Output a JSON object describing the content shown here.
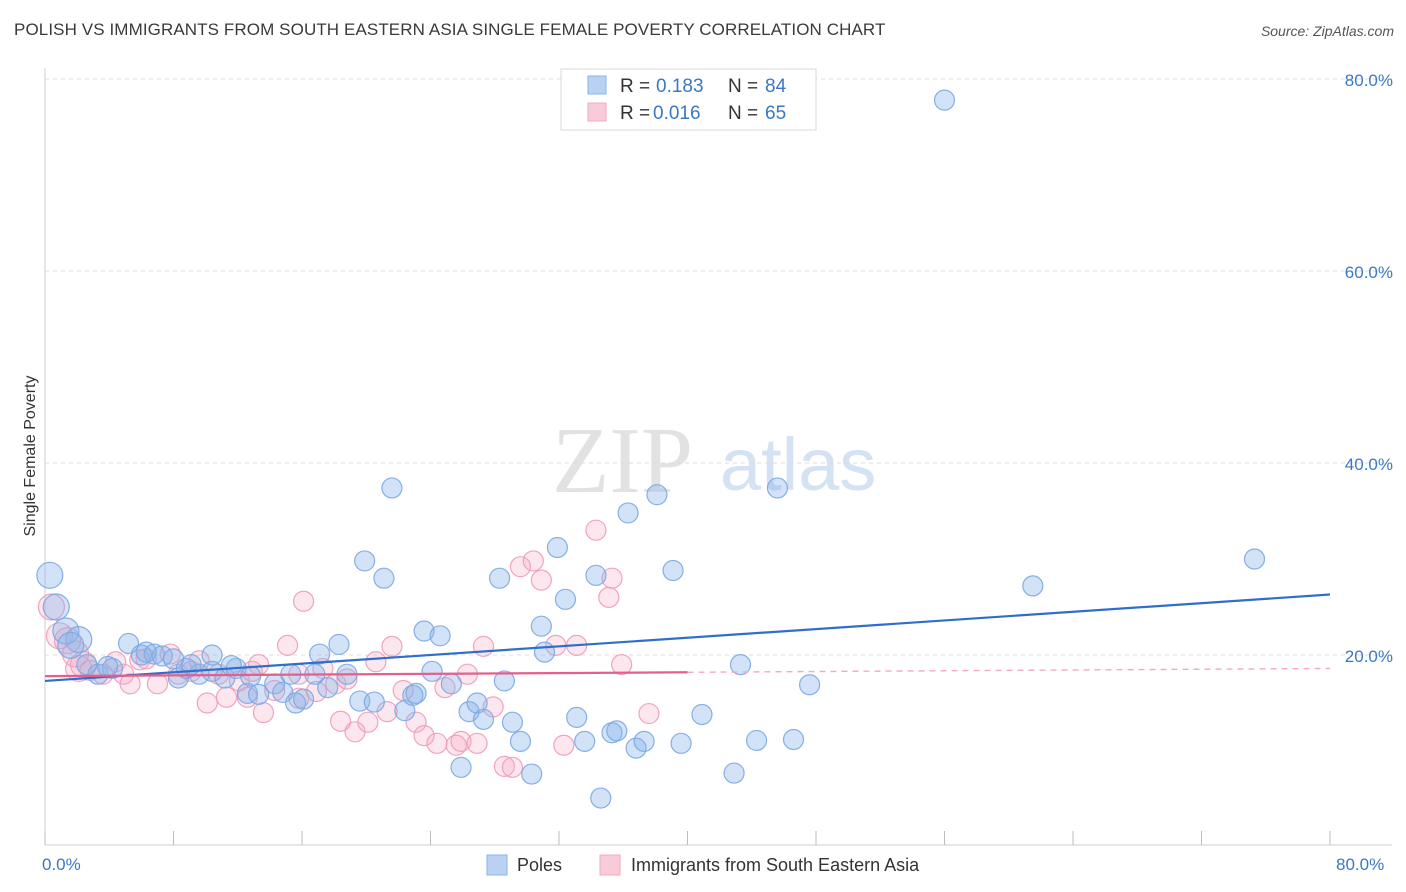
{
  "header": {
    "title": "POLISH VS IMMIGRANTS FROM SOUTH EASTERN ASIA SINGLE FEMALE POVERTY CORRELATION CHART",
    "source": "Source: ZipAtlas.com"
  },
  "watermark": {
    "zip": "ZIP",
    "atlas": "atlas"
  },
  "legend_box": [
    {
      "r_label": "R =",
      "r_value": "0.183",
      "n_label": "N =",
      "n_value": "84"
    },
    {
      "r_label": "R =",
      "r_value": "0.016",
      "n_label": "N =",
      "n_value": "65"
    }
  ],
  "chart_data": {
    "type": "scatter",
    "title": "POLISH VS IMMIGRANTS FROM SOUTH EASTERN ASIA SINGLE FEMALE POVERTY CORRELATION CHART",
    "xlabel": "",
    "ylabel": "Single Female Poverty",
    "xlim": [
      0,
      80
    ],
    "ylim": [
      0,
      82
    ],
    "x_tick_labels": [
      "0.0%",
      "80.0%"
    ],
    "y_ticks": [
      20,
      40,
      60,
      80
    ],
    "y_tick_labels": [
      "20.0%",
      "40.0%",
      "60.0%",
      "80.0%"
    ],
    "grid": true,
    "legend_position": "top-center",
    "series": [
      {
        "name": "Poles",
        "color": "#8ab4ea",
        "line_color": "#2f6fca",
        "r": 0.183,
        "n": 84,
        "trend": [
          [
            0,
            17.3
          ],
          [
            80,
            26.3
          ]
        ],
        "points": [
          [
            0.3,
            28.3
          ],
          [
            0.7,
            25.0
          ],
          [
            1.3,
            22.5
          ],
          [
            2.1,
            21.6
          ],
          [
            1.6,
            21.0
          ],
          [
            2.6,
            19.0
          ],
          [
            3.3,
            18.0
          ],
          [
            4.2,
            18.6
          ],
          [
            5.2,
            21.2
          ],
          [
            6.0,
            20.0
          ],
          [
            6.8,
            20.1
          ],
          [
            7.3,
            19.9
          ],
          [
            8.0,
            19.6
          ],
          [
            8.3,
            17.6
          ],
          [
            8.8,
            18.6
          ],
          [
            9.6,
            18.0
          ],
          [
            10.4,
            20.0
          ],
          [
            10.4,
            18.3
          ],
          [
            11.2,
            17.6
          ],
          [
            11.9,
            18.6
          ],
          [
            12.6,
            16.0
          ],
          [
            12.8,
            17.8
          ],
          [
            13.3,
            15.9
          ],
          [
            14.3,
            17.0
          ],
          [
            14.8,
            16.1
          ],
          [
            15.3,
            18.0
          ],
          [
            15.6,
            15.0
          ],
          [
            16.8,
            18.0
          ],
          [
            17.1,
            20.1
          ],
          [
            17.6,
            16.6
          ],
          [
            18.3,
            21.1
          ],
          [
            18.8,
            18.0
          ],
          [
            19.6,
            15.2
          ],
          [
            19.9,
            29.8
          ],
          [
            20.5,
            15.1
          ],
          [
            21.1,
            28.0
          ],
          [
            21.6,
            37.4
          ],
          [
            22.4,
            14.2
          ],
          [
            23.1,
            16.0
          ],
          [
            23.6,
            22.5
          ],
          [
            24.1,
            18.3
          ],
          [
            24.6,
            22.0
          ],
          [
            25.3,
            17.0
          ],
          [
            25.9,
            8.3
          ],
          [
            26.4,
            14.1
          ],
          [
            26.9,
            15.0
          ],
          [
            27.3,
            13.3
          ],
          [
            28.3,
            28.0
          ],
          [
            28.6,
            17.3
          ],
          [
            29.1,
            13.0
          ],
          [
            29.6,
            11.0
          ],
          [
            30.3,
            7.6
          ],
          [
            30.9,
            23.0
          ],
          [
            31.1,
            20.3
          ],
          [
            31.9,
            31.2
          ],
          [
            32.4,
            25.8
          ],
          [
            33.1,
            13.5
          ],
          [
            33.6,
            11.0
          ],
          [
            34.3,
            28.3
          ],
          [
            34.6,
            5.1
          ],
          [
            35.3,
            11.9
          ],
          [
            35.6,
            12.1
          ],
          [
            36.3,
            34.8
          ],
          [
            36.8,
            10.3
          ],
          [
            37.3,
            11.0
          ],
          [
            38.1,
            36.7
          ],
          [
            39.1,
            28.8
          ],
          [
            39.6,
            10.8
          ],
          [
            40.9,
            13.8
          ],
          [
            42.9,
            7.7
          ],
          [
            43.3,
            19.0
          ],
          [
            44.3,
            11.1
          ],
          [
            45.6,
            37.4
          ],
          [
            46.6,
            11.2
          ],
          [
            47.6,
            16.9
          ],
          [
            56.0,
            77.8
          ],
          [
            61.5,
            27.2
          ],
          [
            75.3,
            30.0
          ],
          [
            3.9,
            18.8
          ],
          [
            6.3,
            20.3
          ],
          [
            9.1,
            19.0
          ],
          [
            11.6,
            18.9
          ],
          [
            16.1,
            15.4
          ],
          [
            22.9,
            15.8
          ]
        ]
      },
      {
        "name": "Immigrants from South Eastern Asia",
        "color": "#f4a9c2",
        "line_color": "#e35f8c",
        "r": 0.016,
        "n": 65,
        "trend": [
          [
            0,
            17.8
          ],
          [
            40,
            18.2
          ]
        ],
        "trend_dashed": [
          [
            40,
            18.2
          ],
          [
            80,
            18.6
          ]
        ],
        "points": [
          [
            0.4,
            25.0
          ],
          [
            0.9,
            22.0
          ],
          [
            1.4,
            21.5
          ],
          [
            1.9,
            20.1
          ],
          [
            2.4,
            19.0
          ],
          [
            2.8,
            18.4
          ],
          [
            3.6,
            18.0
          ],
          [
            4.4,
            19.3
          ],
          [
            4.9,
            18.0
          ],
          [
            5.3,
            17.0
          ],
          [
            6.3,
            19.6
          ],
          [
            7.0,
            17.0
          ],
          [
            7.8,
            20.1
          ],
          [
            8.3,
            18.0
          ],
          [
            9.1,
            18.3
          ],
          [
            9.6,
            19.4
          ],
          [
            10.1,
            15.0
          ],
          [
            10.8,
            18.0
          ],
          [
            11.3,
            15.6
          ],
          [
            12.1,
            17.3
          ],
          [
            12.6,
            15.6
          ],
          [
            13.3,
            19.0
          ],
          [
            13.6,
            14.0
          ],
          [
            14.3,
            16.3
          ],
          [
            15.1,
            21.0
          ],
          [
            15.8,
            15.5
          ],
          [
            15.8,
            18.0
          ],
          [
            16.1,
            25.6
          ],
          [
            16.9,
            16.2
          ],
          [
            17.3,
            18.6
          ],
          [
            18.1,
            17.0
          ],
          [
            18.8,
            17.5
          ],
          [
            19.3,
            12.0
          ],
          [
            20.1,
            13.0
          ],
          [
            20.6,
            19.3
          ],
          [
            21.3,
            14.1
          ],
          [
            21.6,
            20.9
          ],
          [
            22.3,
            16.3
          ],
          [
            23.1,
            13.0
          ],
          [
            23.6,
            11.6
          ],
          [
            24.4,
            10.8
          ],
          [
            24.9,
            16.6
          ],
          [
            25.6,
            10.6
          ],
          [
            25.9,
            11.0
          ],
          [
            26.3,
            18.0
          ],
          [
            26.9,
            10.8
          ],
          [
            27.3,
            20.9
          ],
          [
            27.9,
            14.6
          ],
          [
            28.6,
            8.4
          ],
          [
            29.1,
            8.3
          ],
          [
            29.6,
            29.2
          ],
          [
            30.4,
            29.8
          ],
          [
            30.9,
            27.8
          ],
          [
            31.8,
            21.0
          ],
          [
            32.3,
            10.6
          ],
          [
            33.1,
            21.0
          ],
          [
            34.3,
            33.0
          ],
          [
            35.1,
            26.0
          ],
          [
            35.3,
            28.0
          ],
          [
            35.9,
            19.0
          ],
          [
            37.6,
            13.9
          ],
          [
            2.1,
            18.6
          ],
          [
            5.9,
            19.5
          ],
          [
            12.9,
            18.3
          ],
          [
            18.4,
            13.1
          ]
        ]
      }
    ]
  },
  "bottom_legend": [
    {
      "label": "Poles"
    },
    {
      "label": "Immigrants from South Eastern Asia"
    }
  ]
}
